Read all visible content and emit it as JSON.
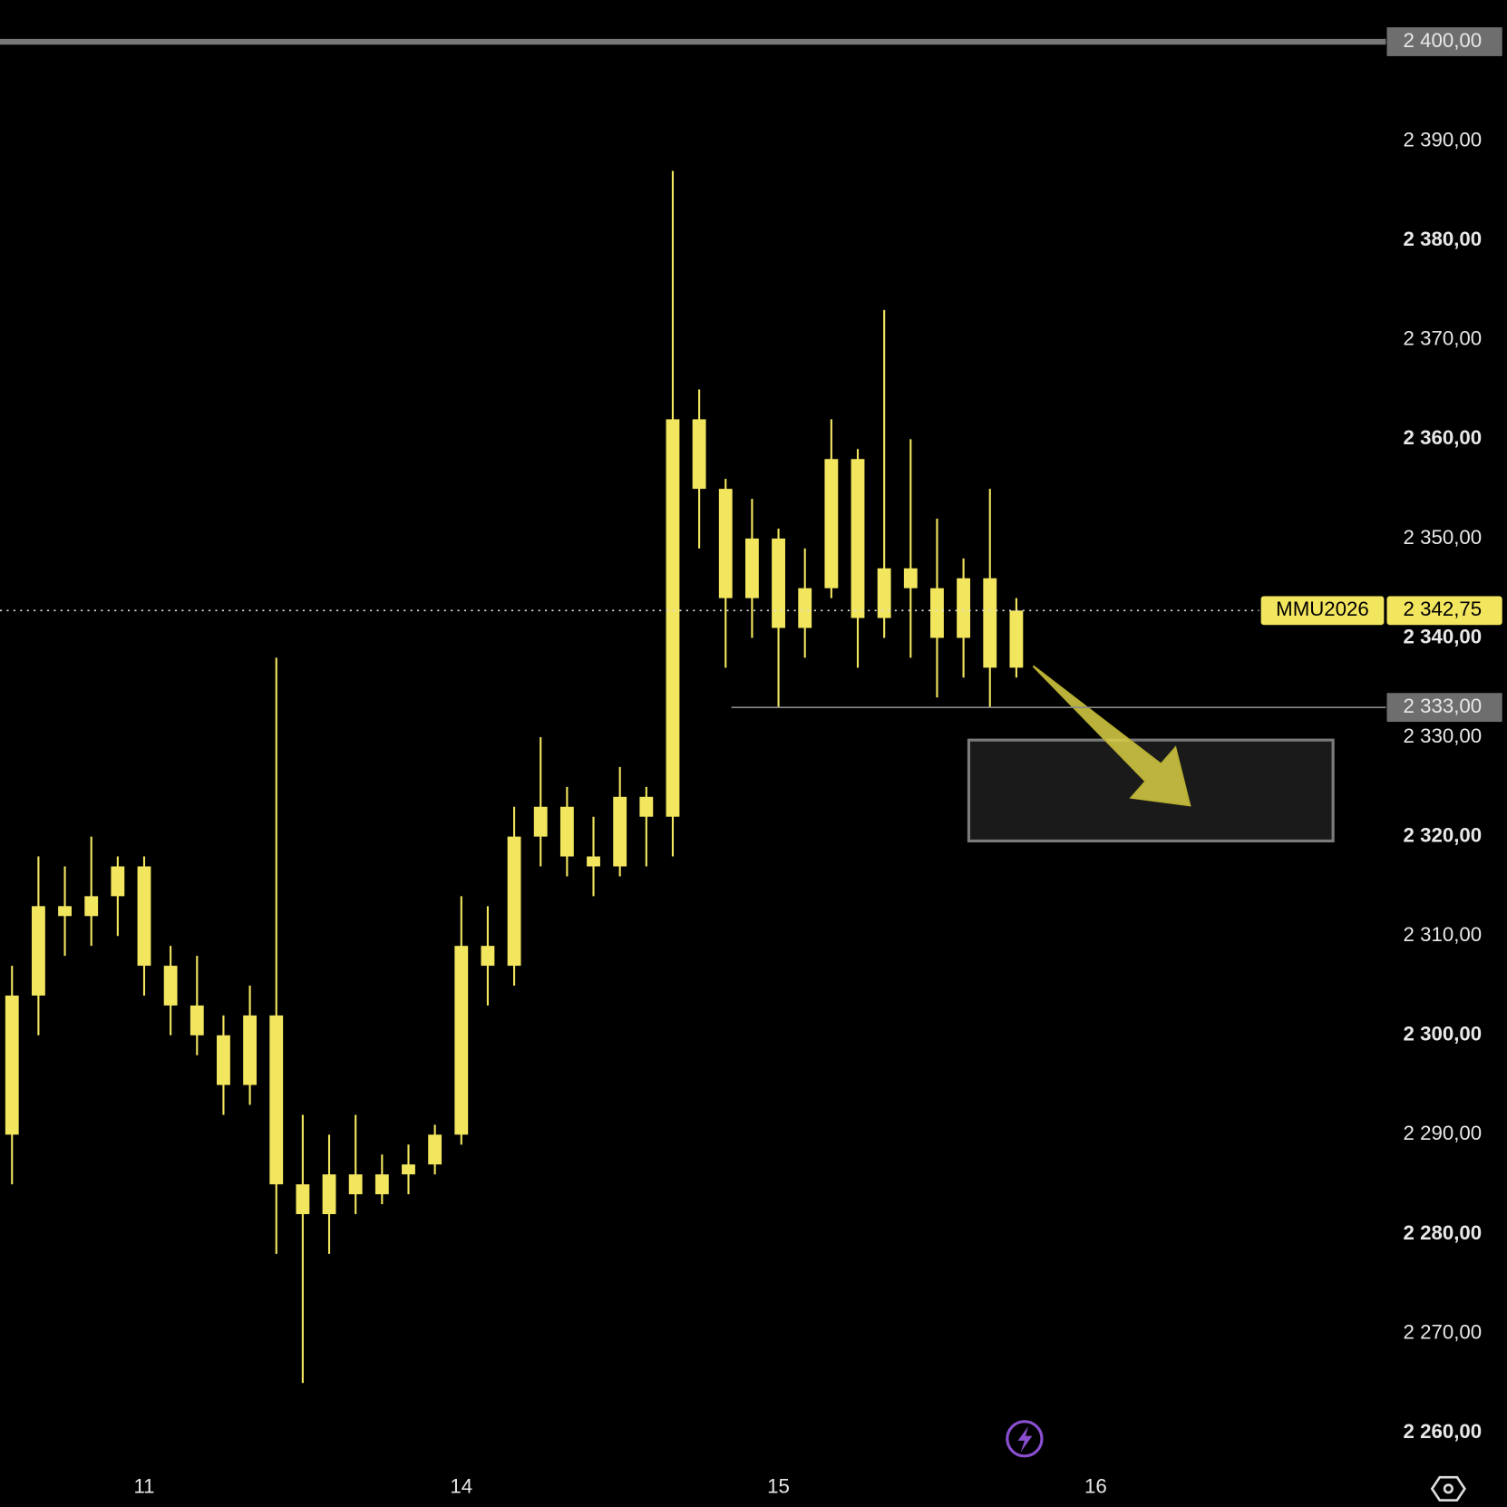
{
  "chart_data": {
    "type": "candlestick",
    "categories": [
      null,
      null,
      null,
      null,
      null,
      "11",
      null,
      null,
      null,
      null,
      null,
      null,
      null,
      null,
      null,
      null,
      null,
      "14",
      null,
      null,
      null,
      null,
      null,
      null,
      null,
      null,
      null,
      null,
      null,
      "15",
      null,
      null,
      null,
      null,
      null,
      null,
      null,
      null,
      null,
      null,
      null,
      "16"
    ],
    "series": [
      {
        "name": "MMU2026",
        "color": "#f3e65f",
        "open": [
          2290,
          2304,
          2313,
          2312,
          2314,
          2317,
          2307,
          2303,
          2300,
          2295,
          2302,
          2285,
          2282,
          2286,
          2284,
          2286,
          2287,
          2290,
          2309,
          2307,
          2320,
          2323,
          2318,
          2317,
          2324,
          2322,
          2362,
          2355,
          2344,
          2350,
          2341,
          2345,
          2358,
          2342,
          2347,
          2345,
          2340,
          2346,
          2337,
          null,
          null,
          null
        ],
        "high": [
          2307,
          2318,
          2317,
          2320,
          2318,
          2318,
          2309,
          2308,
          2302,
          2305,
          2338,
          2292,
          2290,
          2292,
          2288,
          2289,
          2291,
          2314,
          2313,
          2323,
          2330,
          2325,
          2322,
          2327,
          2325,
          2387,
          2365,
          2356,
          2354,
          2351,
          2349,
          2362,
          2359,
          2373,
          2360,
          2352,
          2348,
          2355,
          2344,
          null,
          null,
          null
        ],
        "low": [
          2285,
          2300,
          2308,
          2309,
          2310,
          2304,
          2300,
          2298,
          2292,
          2293,
          2278,
          2265,
          2278,
          2282,
          2283,
          2284,
          2286,
          2289,
          2303,
          2305,
          2317,
          2316,
          2314,
          2316,
          2317,
          2318,
          2349,
          2337,
          2340,
          2333,
          2338,
          2344,
          2337,
          2340,
          2338,
          2334,
          2336,
          2333,
          2336,
          null,
          null,
          null
        ],
        "close": [
          2304,
          2313,
          2312,
          2314,
          2317,
          2307,
          2303,
          2300,
          2295,
          2302,
          2285,
          2282,
          2286,
          2284,
          2286,
          2287,
          2290,
          2309,
          2307,
          2320,
          2323,
          2318,
          2317,
          2324,
          2322,
          2362,
          2355,
          2344,
          2350,
          2341,
          2345,
          2358,
          2342,
          2347,
          2345,
          2340,
          2346,
          2337,
          2342.75,
          null,
          null,
          null
        ]
      }
    ],
    "ylim": [
      2256.2,
      2404.2
    ],
    "yticks": [
      {
        "value": 2390,
        "label": "2 390,00"
      },
      {
        "value": 2380,
        "label": "2 380,00"
      },
      {
        "value": 2370,
        "label": "2 370,00"
      },
      {
        "value": 2360,
        "label": "2 360,00"
      },
      {
        "value": 2350,
        "label": "2 350,00"
      },
      {
        "value": 2340,
        "label": "2 340,00"
      },
      {
        "value": 2330,
        "label": "2 330,00"
      },
      {
        "value": 2320,
        "label": "2 320,00"
      },
      {
        "value": 2310,
        "label": "2 310,00"
      },
      {
        "value": 2300,
        "label": "2 300,00"
      },
      {
        "value": 2290,
        "label": "2 290,00"
      },
      {
        "value": 2280,
        "label": "2 280,00"
      },
      {
        "value": 2270,
        "label": "2 270,00"
      },
      {
        "value": 2260,
        "label": "2 260,00"
      }
    ],
    "horizontal_lines": [
      {
        "value": 2400,
        "label": "2 400,00"
      },
      {
        "value": 2333,
        "label": "2 333,00"
      }
    ],
    "last_price": {
      "value": 2342.75,
      "label": "2 342,75"
    }
  }
}
